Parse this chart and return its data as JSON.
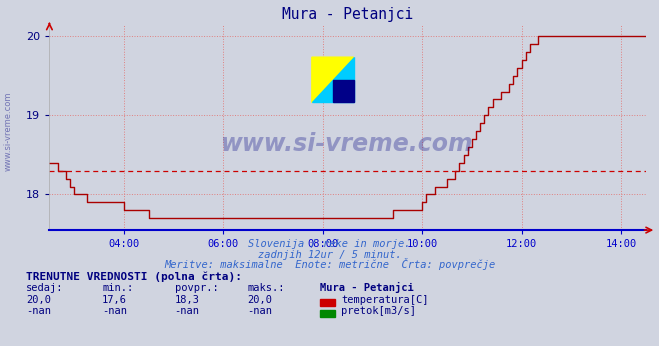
{
  "title": "Mura - Petanjci",
  "title_color": "#000080",
  "bg_color": "#d0d4e0",
  "plot_bg_color": "#d0d4e0",
  "grid_color": "#e08080",
  "grid_style": ":",
  "xaxis_line_color": "#0000cc",
  "yaxis_color": "#000080",
  "line_color": "#aa0000",
  "avg_line_color": "#cc0000",
  "avg_line_style": "--",
  "avg_value": 18.3,
  "ylim": [
    17.55,
    20.15
  ],
  "yticks": [
    18,
    19,
    20
  ],
  "xlim_start": 0,
  "xlim_end": 144,
  "xtick_positions": [
    18,
    42,
    66,
    90,
    114,
    138
  ],
  "xtick_labels": [
    "04:00",
    "06:00",
    "08:00",
    "10:00",
    "12:00",
    "14:00"
  ],
  "subtitle1": "Slovenija / reke in morje.",
  "subtitle2": "zadnjih 12ur / 5 minut.",
  "subtitle3": "Meritve: maksimalne  Enote: metrične  Črta: povprečje",
  "legend_title": "TRENUTNE VREDNOSTI (polna črta):",
  "legend_headers": [
    "sedaj:",
    "min.:",
    "povpr.:",
    "maks.:",
    "Mura - Petanjci"
  ],
  "legend_row1": [
    "20,0",
    "17,6",
    "18,3",
    "20,0",
    "temperatura[C]"
  ],
  "legend_row2": [
    "-nan",
    "-nan",
    "-nan",
    "-nan",
    "pretok[m3/s]"
  ],
  "temp_color": "#cc0000",
  "flow_color": "#008800",
  "watermark_text": "www.si-vreme.com",
  "watermark_color": "#000080",
  "watermark_alpha": 0.3,
  "left_watermark": "www.si-vreme.com",
  "time_data": [
    0,
    1,
    2,
    3,
    4,
    5,
    6,
    7,
    8,
    9,
    10,
    11,
    12,
    13,
    14,
    15,
    16,
    17,
    18,
    19,
    20,
    21,
    22,
    23,
    24,
    25,
    26,
    27,
    28,
    29,
    30,
    31,
    32,
    33,
    34,
    35,
    36,
    37,
    38,
    39,
    40,
    41,
    42,
    43,
    44,
    45,
    46,
    47,
    48,
    49,
    50,
    51,
    52,
    53,
    54,
    55,
    56,
    57,
    58,
    59,
    60,
    61,
    62,
    63,
    64,
    65,
    66,
    67,
    68,
    69,
    70,
    71,
    72,
    73,
    74,
    75,
    76,
    77,
    78,
    79,
    80,
    81,
    82,
    83,
    84,
    85,
    86,
    87,
    88,
    89,
    90,
    91,
    92,
    93,
    94,
    95,
    96,
    97,
    98,
    99,
    100,
    101,
    102,
    103,
    104,
    105,
    106,
    107,
    108,
    109,
    110,
    111,
    112,
    113,
    114,
    115,
    116,
    117,
    118,
    119,
    120,
    121,
    122,
    123,
    124,
    125,
    126,
    127,
    128,
    129,
    130,
    131,
    132,
    133,
    134,
    135,
    136,
    137,
    138,
    139,
    140,
    141,
    142,
    143,
    144
  ],
  "temp_data": [
    18.4,
    18.4,
    18.3,
    18.3,
    18.2,
    18.1,
    18.0,
    18.0,
    18.0,
    17.9,
    17.9,
    17.9,
    17.9,
    17.9,
    17.9,
    17.9,
    17.9,
    17.9,
    17.8,
    17.8,
    17.8,
    17.8,
    17.8,
    17.8,
    17.7,
    17.7,
    17.7,
    17.7,
    17.7,
    17.7,
    17.7,
    17.7,
    17.7,
    17.7,
    17.7,
    17.7,
    17.7,
    17.7,
    17.7,
    17.7,
    17.7,
    17.7,
    17.7,
    17.7,
    17.7,
    17.7,
    17.7,
    17.7,
    17.7,
    17.7,
    17.7,
    17.7,
    17.7,
    17.7,
    17.7,
    17.7,
    17.7,
    17.7,
    17.7,
    17.7,
    17.7,
    17.7,
    17.7,
    17.7,
    17.7,
    17.7,
    17.7,
    17.7,
    17.7,
    17.7,
    17.7,
    17.7,
    17.7,
    17.7,
    17.7,
    17.7,
    17.7,
    17.7,
    17.7,
    17.7,
    17.7,
    17.7,
    17.7,
    17.8,
    17.8,
    17.8,
    17.8,
    17.8,
    17.8,
    17.8,
    17.9,
    18.0,
    18.0,
    18.1,
    18.1,
    18.1,
    18.2,
    18.2,
    18.3,
    18.4,
    18.5,
    18.6,
    18.7,
    18.8,
    18.9,
    19.0,
    19.1,
    19.2,
    19.2,
    19.3,
    19.3,
    19.4,
    19.5,
    19.6,
    19.7,
    19.8,
    19.9,
    19.9,
    20.0,
    20.0,
    20.0,
    20.0,
    20.0,
    20.0,
    20.0,
    20.0,
    20.0,
    20.0,
    20.0,
    20.0,
    20.0,
    20.0,
    20.0,
    20.0,
    20.0,
    20.0,
    20.0,
    20.0,
    20.0,
    20.0,
    20.0,
    20.0,
    20.0,
    20.0,
    20.0
  ]
}
